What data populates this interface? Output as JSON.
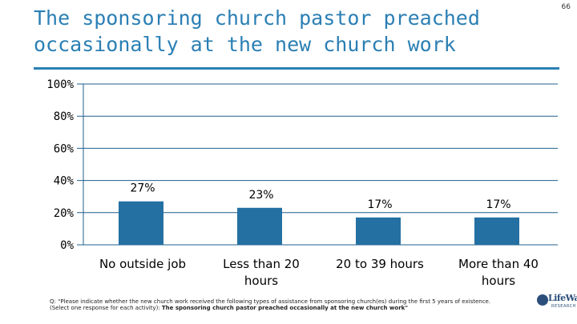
{
  "slide": {
    "title": "The sponsoring church pastor preached occasionally at the new church work",
    "page_number": "66",
    "footnote_prefix": "Q: \"Please indicate whether the new church work received the following types of assistance from sponsoring church(es) during the first 5 years of existence. (Select one response for each activity): ",
    "footnote_bold": "The sponsoring church pastor preached occasionally at the new church work\"",
    "logo_text_top": "LifeWay",
    "logo_text_bottom": "RESEARCH"
  },
  "chart_data": {
    "type": "bar",
    "categories": [
      "No outside job",
      "Less than 20 hours",
      "20 to 39 hours",
      "More than 40 hours"
    ],
    "values": [
      27,
      23,
      17,
      17
    ],
    "value_labels": [
      "27%",
      "23%",
      "17%",
      "17%"
    ],
    "yticks": [
      "0%",
      "20%",
      "40%",
      "60%",
      "80%",
      "100%"
    ],
    "ylim": [
      0,
      100
    ],
    "bar_color": "#2470a2",
    "grid": true,
    "grid_color": "#1f5f8b"
  }
}
